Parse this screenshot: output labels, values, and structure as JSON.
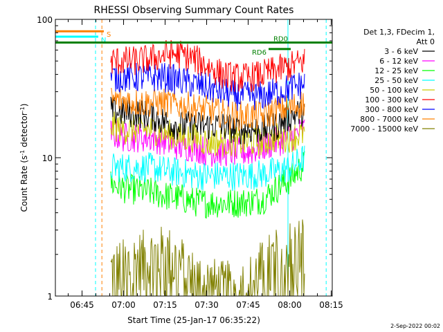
{
  "chart_data": {
    "type": "line",
    "title": "RHESSI Observing Summary Count Rates",
    "xlabel": "Start Time (25-Jan-17 06:35:22)",
    "ylabel_main": "Count Rate (s",
    "ylabel_sup1": "-1",
    "ylabel_mid": " detector",
    "ylabel_sup2": "-1",
    "ylabel_end": ")",
    "y_scale": "log",
    "ylim": [
      1,
      100
    ],
    "xlim_minutes": [
      0,
      100
    ],
    "x_ticks": [
      {
        "label": "06:45",
        "t": 9.633
      },
      {
        "label": "07:00",
        "t": 24.633
      },
      {
        "label": "07:15",
        "t": 39.633
      },
      {
        "label": "07:30",
        "t": 54.633
      },
      {
        "label": "07:45",
        "t": 69.633
      },
      {
        "label": "08:00",
        "t": 84.633
      },
      {
        "label": "08:15",
        "t": 99.633
      }
    ],
    "y_ticks": [
      {
        "label": "1",
        "v": 1
      },
      {
        "label": "10",
        "v": 10
      },
      {
        "label": "100",
        "v": 100
      }
    ],
    "legend_header": [
      "Det 1,3, FDecim 1,",
      "Att 0"
    ],
    "footer_date": "2-Sep-2022 00:02",
    "series": [
      {
        "name": "3 - 6 keV",
        "color": "#000000",
        "profile": [
          22,
          21,
          21,
          20,
          18,
          17,
          17,
          17,
          17,
          16,
          16,
          16,
          17,
          20,
          22
        ]
      },
      {
        "name": "6 - 12 keV",
        "color": "#ff00ff",
        "profile": [
          15,
          14,
          14,
          14,
          13,
          12,
          12,
          11,
          11,
          11,
          11,
          12,
          13,
          14,
          16
        ]
      },
      {
        "name": "12 - 25 keV",
        "color": "#00ff00",
        "profile": [
          6.5,
          6.0,
          5.8,
          5.6,
          5.3,
          5.1,
          4.8,
          4.7,
          4.7,
          4.7,
          4.8,
          5.0,
          6.0,
          7.0,
          9.0
        ]
      },
      {
        "name": "25 - 50 keV",
        "color": "#00ffff",
        "profile": [
          8.5,
          8.5,
          8.5,
          8.5,
          8.0,
          7.8,
          7.5,
          7.4,
          7.4,
          7.4,
          7.5,
          7.6,
          8.0,
          8.5,
          10.0
        ]
      },
      {
        "name": "50 - 100 keV",
        "color": "#cccc00",
        "profile": [
          17,
          16,
          16,
          16,
          15,
          14,
          14,
          13,
          13,
          13,
          13,
          13,
          14,
          14,
          15
        ]
      },
      {
        "name": "100 - 300 keV",
        "color": "#ff0000",
        "profile": [
          50,
          50,
          50,
          52,
          56,
          56,
          52,
          46,
          40,
          38,
          38,
          40,
          43,
          46,
          50
        ]
      },
      {
        "name": "300 - 800 keV",
        "color": "#0000ff",
        "profile": [
          38,
          38,
          38,
          38,
          38,
          36,
          34,
          32,
          30,
          28,
          28,
          28,
          30,
          32,
          34
        ]
      },
      {
        "name": "800 - 7000 keV",
        "color": "#ff8000",
        "profile": [
          26,
          26,
          25,
          25,
          25,
          24,
          23,
          22,
          21,
          20,
          20,
          20,
          22,
          23,
          25
        ]
      },
      {
        "name": "7000 - 15000 keV",
        "color": "#808000",
        "profile": [
          1.5,
          1.6,
          1.8,
          1.9,
          2.0,
          1.7,
          1.3,
          1.2,
          1.1,
          1.1,
          1.2,
          1.6,
          1.9,
          2.2,
          2.4
        ]
      }
    ],
    "data_range_minutes": [
      20,
      90
    ],
    "state_bars": [
      {
        "label": "S",
        "color": "#ff8000",
        "t0": 0,
        "t1": 17.5,
        "v": 82
      },
      {
        "label": "N",
        "color": "#00ffff",
        "t0": 0,
        "t1": 15.5,
        "v": 75
      },
      {
        "label": "RD0",
        "color": "#008000",
        "t0": 0,
        "t1": 100,
        "v": 68
      },
      {
        "label": "RD6",
        "color": "#008000",
        "t0": 77,
        "t1": 85,
        "v": 61
      }
    ],
    "markers": [
      {
        "color": "#00ffff",
        "t": 14.5,
        "style": "dashed"
      },
      {
        "color": "#ff8000",
        "t": 16.8,
        "style": "dashed"
      },
      {
        "color": "#00ffff",
        "t": 84.0,
        "style": "solid"
      },
      {
        "color": "#00ffff",
        "t": 97.8,
        "style": "dashed"
      }
    ]
  }
}
